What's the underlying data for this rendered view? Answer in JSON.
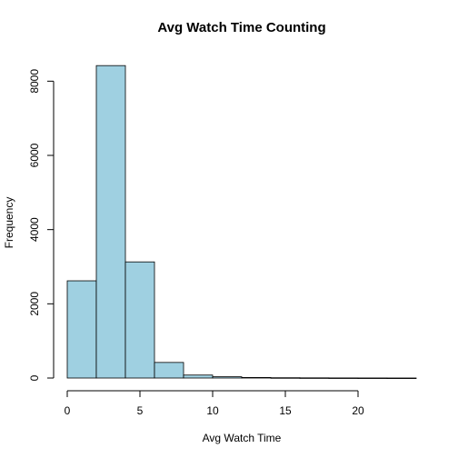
{
  "chart_data": {
    "type": "bar",
    "title": "Avg Watch Time Counting",
    "xlabel": "Avg Watch Time",
    "ylabel": "Frequency",
    "bar_color": "#9fd0e1",
    "xlim": [
      0,
      24
    ],
    "ylim": [
      0,
      8400
    ],
    "xticks": [
      0,
      5,
      10,
      15,
      20
    ],
    "yticks": [
      0,
      2000,
      4000,
      6000,
      8000
    ],
    "bins": [
      {
        "x0": 0,
        "x1": 2,
        "count": 2620
      },
      {
        "x0": 2,
        "x1": 4,
        "count": 8420
      },
      {
        "x0": 4,
        "x1": 6,
        "count": 3130
      },
      {
        "x0": 6,
        "x1": 8,
        "count": 420
      },
      {
        "x0": 8,
        "x1": 10,
        "count": 80
      },
      {
        "x0": 10,
        "x1": 12,
        "count": 35
      },
      {
        "x0": 12,
        "x1": 14,
        "count": 15
      },
      {
        "x0": 14,
        "x1": 16,
        "count": 8
      },
      {
        "x0": 16,
        "x1": 18,
        "count": 5
      },
      {
        "x0": 18,
        "x1": 20,
        "count": 3
      },
      {
        "x0": 20,
        "x1": 22,
        "count": 2
      },
      {
        "x0": 22,
        "x1": 24,
        "count": 1
      }
    ]
  }
}
